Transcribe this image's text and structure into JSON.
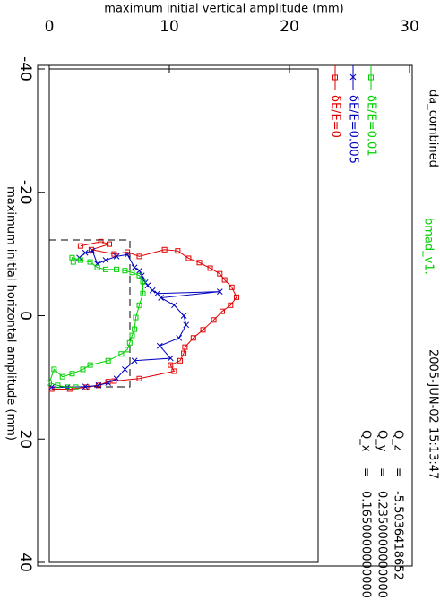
{
  "chart_data": {
    "type": "line",
    "title": "da_combined",
    "annotations": [
      "bmad_v1.",
      "2005-JUN-02 15:13:47"
    ],
    "tunes": [
      [
        "Q_x",
        "=",
        "0.1650000000000"
      ],
      [
        "Q_y",
        "=",
        "0.2350000000000"
      ],
      [
        "Q_z",
        "=",
        "-5.5036418652"
      ]
    ],
    "x_label": "maximum initial horizontal amplitude (mm)",
    "y_label": "maximum initial vertical amplitude (mm)",
    "xlim": [
      -40,
      40
    ],
    "xticks": [
      -40,
      -20,
      0,
      20,
      40
    ],
    "ylim": [
      0,
      30
    ],
    "yticks": [
      0,
      10,
      20,
      30
    ],
    "series": [
      {
        "name": "δE/E=0",
        "color": "#e00000",
        "marker": "square",
        "x": [
          -11.3,
          -12.0,
          -11.6,
          -10.7,
          -10.0,
          -10.3,
          -9.6,
          -10.7,
          -10.5,
          -9.3,
          -8.6,
          -7.7,
          -6.8,
          -5.8,
          -4.6,
          -3.0,
          -1.7,
          -0.7,
          0.7,
          2.3,
          3.6,
          5.1,
          6.1,
          7.3,
          8.0,
          9.0,
          10.2,
          10.6,
          10.7,
          11.3,
          11.6,
          11.9,
          11.9
        ],
        "values": [
          2.6,
          4.3,
          5.0,
          3.5,
          5.4,
          6.5,
          7.5,
          9.6,
          10.7,
          11.6,
          12.5,
          13.4,
          14.2,
          14.6,
          15.2,
          15.6,
          15.1,
          14.4,
          13.7,
          12.8,
          12.0,
          11.3,
          11.2,
          10.9,
          10.1,
          10.4,
          7.5,
          5.4,
          4.9,
          4.1,
          3.1,
          1.7,
          0.2
        ]
      },
      {
        "name": "δE/E=0.005",
        "color": "#0000c0",
        "marker": "cross",
        "x": [
          -9.4,
          -10.2,
          -10.5,
          -8.4,
          -9.0,
          -9.6,
          -9.9,
          -7.8,
          -7.3,
          -6.5,
          -5.4,
          -4.9,
          -4.1,
          -3.6,
          -3.9,
          -2.9,
          -1.7,
          0,
          1.5,
          3.6,
          4.9,
          6.9,
          7.3,
          8.7,
          10.2,
          10.9,
          11.3,
          11.5,
          11.6,
          11.6
        ],
        "values": [
          2.5,
          3.0,
          3.6,
          4.0,
          4.7,
          5.6,
          6.5,
          7.1,
          7.5,
          7.7,
          8.0,
          8.2,
          8.6,
          9.0,
          14.2,
          9.3,
          10.4,
          11.2,
          11.4,
          10.8,
          9.2,
          10.1,
          7.1,
          6.3,
          5.6,
          4.9,
          4.1,
          3.0,
          1.5,
          0.2
        ]
      },
      {
        "name": "δE/E=0.01",
        "color": "#00d000",
        "marker": "square",
        "x": [
          -8.7,
          -9.4,
          -9.0,
          -8.7,
          -7.8,
          -7.5,
          -7.5,
          -7.3,
          -7.0,
          -6.5,
          -5.5,
          -3.6,
          -1.7,
          0.3,
          2.2,
          3.2,
          4.4,
          5.5,
          6.2,
          7.3,
          8.0,
          8.7,
          9.4,
          9.9,
          8.7,
          10.9,
          11.3,
          11.6,
          11.6
        ],
        "values": [
          2.0,
          1.9,
          2.6,
          3.4,
          4.0,
          4.7,
          5.6,
          6.3,
          6.9,
          7.5,
          7.8,
          7.8,
          7.5,
          7.2,
          7.1,
          6.9,
          6.7,
          6.5,
          6.0,
          4.9,
          3.4,
          2.8,
          1.9,
          1.1,
          0.4,
          0,
          0.7,
          1.5,
          2.2
        ]
      }
    ]
  }
}
